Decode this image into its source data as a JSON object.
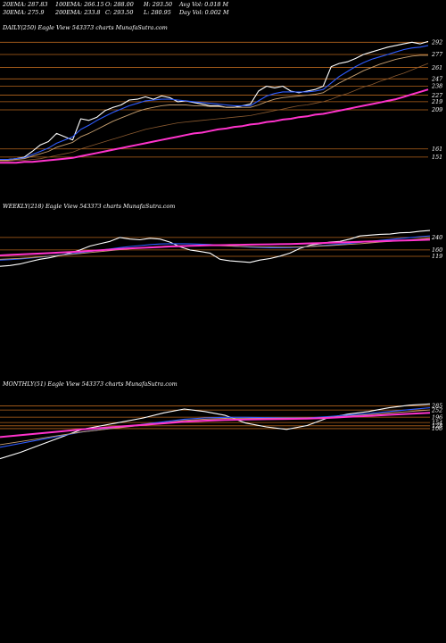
{
  "header": {
    "row1": [
      "20EMA: 287.83",
      "100EMA: 266.15",
      "O: 288.00",
      "H: 293.50",
      "Avg Vol: 0.018 M"
    ],
    "row2": [
      "30EMA: 275.9",
      "200EMA: 233.8",
      "C: 293.50",
      "L: 280.95",
      "Day Vol: 0.002 M"
    ]
  },
  "colors": {
    "price": "#ffffff",
    "ema20": "#2e5cff",
    "ema30": "#c8a070",
    "ema100": "#8a5a30",
    "ema200": "#ff33cc",
    "level": "#b5651d"
  },
  "chart_data": [
    {
      "type": "line",
      "title": "DAILY(250) Eagle  View  543373 charts MunafaSutra.com",
      "y_ticks": [
        292,
        277,
        261,
        247,
        238,
        227,
        219,
        209,
        161,
        151
      ],
      "ylim": [
        130,
        300
      ],
      "series": [
        {
          "key": "price",
          "values": [
            147,
            148,
            149,
            151,
            158,
            166,
            170,
            180,
            176,
            172,
            198,
            196,
            200,
            208,
            212,
            215,
            221,
            222,
            225,
            222,
            226,
            224,
            219,
            220,
            218,
            216,
            214,
            214,
            212,
            212,
            214,
            216,
            232,
            238,
            236,
            238,
            232,
            230,
            232,
            234,
            238,
            262,
            266,
            268,
            272,
            277,
            280,
            283,
            286,
            288,
            290,
            292,
            290,
            293
          ]
        },
        {
          "key": "ema20",
          "values": [
            148,
            148,
            149,
            150,
            154,
            158,
            162,
            168,
            172,
            176,
            185,
            190,
            196,
            201,
            206,
            210,
            214,
            217,
            220,
            221,
            222,
            222,
            221,
            220,
            219,
            218,
            217,
            216,
            215,
            214,
            214,
            214,
            220,
            226,
            229,
            231,
            231,
            231,
            231,
            232,
            234,
            242,
            250,
            256,
            262,
            267,
            271,
            274,
            277,
            280,
            283,
            285,
            286,
            288
          ]
        },
        {
          "key": "ema30",
          "values": [
            147,
            147,
            148,
            149,
            152,
            155,
            158,
            163,
            166,
            169,
            176,
            180,
            185,
            190,
            195,
            199,
            203,
            207,
            210,
            212,
            214,
            215,
            215,
            215,
            214,
            214,
            213,
            213,
            212,
            212,
            212,
            212,
            215,
            219,
            222,
            224,
            225,
            226,
            227,
            228,
            230,
            236,
            242,
            247,
            252,
            257,
            261,
            265,
            268,
            271,
            273,
            275,
            276,
            276
          ]
        },
        {
          "key": "ema100",
          "values": [
            146,
            146,
            147,
            147,
            148,
            149,
            151,
            153,
            155,
            157,
            161,
            164,
            167,
            170,
            173,
            176,
            179,
            182,
            185,
            187,
            189,
            191,
            193,
            194,
            195,
            196,
            197,
            198,
            199,
            200,
            201,
            202,
            204,
            206,
            208,
            210,
            212,
            214,
            215,
            217,
            219,
            222,
            226,
            229,
            233,
            237,
            240,
            244,
            247,
            251,
            254,
            258,
            262,
            266
          ]
        },
        {
          "key": "ema200",
          "values": [
            144,
            144,
            144,
            145,
            145,
            146,
            147,
            148,
            149,
            150,
            152,
            154,
            156,
            158,
            160,
            162,
            164,
            166,
            168,
            170,
            172,
            174,
            176,
            178,
            180,
            181,
            183,
            185,
            186,
            188,
            189,
            191,
            192,
            194,
            195,
            197,
            198,
            200,
            201,
            203,
            204,
            206,
            208,
            210,
            212,
            214,
            216,
            218,
            220,
            222,
            225,
            228,
            231,
            234
          ]
        }
      ]
    },
    {
      "type": "line",
      "title": "WEEKLY(218) Eagle  View  543373 charts MunafaSutra.com",
      "y_ticks": [
        240,
        160,
        119
      ],
      "ylim": [
        -500,
        400
      ],
      "series": [
        {
          "key": "price",
          "values": [
            55,
            60,
            70,
            85,
            100,
            110,
            125,
            140,
            160,
            185,
            200,
            215,
            240,
            230,
            225,
            235,
            230,
            210,
            180,
            160,
            150,
            140,
            100,
            90,
            85,
            80,
            95,
            105,
            120,
            140,
            170,
            190,
            200,
            210,
            215,
            230,
            250,
            255,
            260,
            262,
            270,
            272,
            280,
            285
          ]
        },
        {
          "key": "ema20",
          "values": [
            95,
            98,
            102,
            108,
            114,
            120,
            127,
            134,
            142,
            150,
            158,
            166,
            175,
            182,
            188,
            194,
            198,
            200,
            200,
            199,
            197,
            195,
            190,
            186,
            182,
            178,
            176,
            174,
            174,
            175,
            178,
            182,
            187,
            192,
            197,
            203,
            209,
            215,
            221,
            227,
            233,
            239,
            245,
            250
          ]
        },
        {
          "key": "ema30",
          "values": [
            100,
            103,
            106,
            110,
            115,
            120,
            125,
            131,
            137,
            143,
            149,
            155,
            162,
            168,
            173,
            178,
            182,
            185,
            187,
            188,
            188,
            188,
            187,
            185,
            183,
            181,
            180,
            179,
            178,
            178,
            180,
            182,
            185,
            188,
            192,
            196,
            200,
            205,
            210,
            215,
            220,
            225,
            230,
            235
          ]
        },
        {
          "key": "ema200",
          "values": [
            125,
            128,
            131,
            134,
            137,
            140,
            143,
            146,
            150,
            154,
            158,
            162,
            166,
            170,
            173,
            176,
            179,
            182,
            184,
            186,
            188,
            190,
            191,
            192,
            193,
            194,
            195,
            196,
            197,
            198,
            200,
            202,
            204,
            206,
            208,
            210,
            212,
            214,
            216,
            218,
            220,
            222,
            224,
            226
          ]
        }
      ]
    },
    {
      "type": "line",
      "title": "MONTHLY(51) Eagle  View  543373 charts MunafaSutra.com",
      "y_ticks": [
        285,
        252,
        196,
        154,
        128,
        106
      ],
      "ylim": [
        -700,
        400
      ],
      "series": [
        {
          "key": "price",
          "values": [
            -130,
            -80,
            -20,
            40,
            100,
            130,
            160,
            190,
            230,
            260,
            240,
            210,
            150,
            120,
            100,
            130,
            190,
            220,
            240,
            270,
            290,
            300
          ]
        },
        {
          "key": "ema20",
          "values": [
            -40,
            -10,
            20,
            50,
            80,
            100,
            120,
            140,
            160,
            180,
            190,
            195,
            195,
            192,
            190,
            190,
            200,
            212,
            225,
            240,
            255,
            270
          ]
        },
        {
          "key": "ema30",
          "values": [
            -20,
            5,
            30,
            55,
            80,
            98,
            116,
            134,
            152,
            170,
            180,
            186,
            188,
            187,
            186,
            187,
            195,
            205,
            216,
            228,
            240,
            252
          ]
        },
        {
          "key": "ema200",
          "values": [
            40,
            55,
            70,
            85,
            100,
            112,
            124,
            136,
            148,
            160,
            168,
            174,
            178,
            180,
            182,
            184,
            190,
            198,
            206,
            214,
            222,
            230
          ]
        }
      ]
    }
  ]
}
